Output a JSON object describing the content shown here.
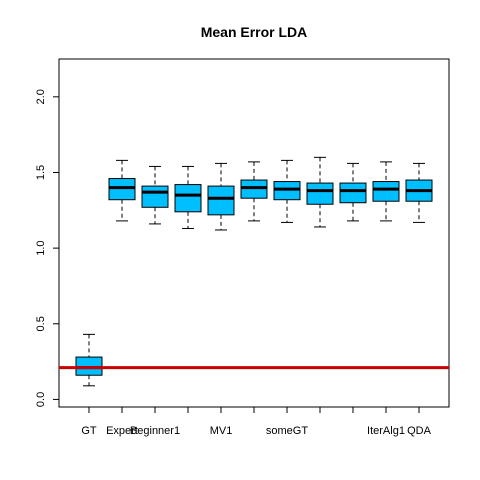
{
  "chart_data": {
    "type": "boxplot",
    "title": "Mean Error LDA",
    "xlabel": "",
    "ylabel": "",
    "ylim": [
      -0.05,
      2.25
    ],
    "y_ticks": [
      0.0,
      0.5,
      1.0,
      1.5,
      2.0
    ],
    "y_tick_labels": [
      "0.0",
      "0.5",
      "1.0",
      "1.5",
      "2.0"
    ],
    "categories": [
      "GT",
      "Expert",
      "Beginner1",
      "",
      "MV1",
      "",
      "someGT",
      "",
      "",
      "IterAlg1",
      "QDA"
    ],
    "x_tick_labels_shown": [
      "GT",
      "Expert",
      "Beginner1",
      "",
      "MV1",
      "",
      "someGT",
      "",
      "",
      "IterAlg1",
      "QDA"
    ],
    "box_color": "#00BFFF",
    "reference_line": {
      "y": 0.21,
      "color": "#CC0000"
    },
    "series": [
      {
        "min": 0.09,
        "q1": 0.16,
        "median": 0.21,
        "q3": 0.28,
        "max": 0.43
      },
      {
        "min": 1.18,
        "q1": 1.32,
        "median": 1.4,
        "q3": 1.46,
        "max": 1.58
      },
      {
        "min": 1.16,
        "q1": 1.27,
        "median": 1.37,
        "q3": 1.41,
        "max": 1.54
      },
      {
        "min": 1.13,
        "q1": 1.24,
        "median": 1.35,
        "q3": 1.42,
        "max": 1.54
      },
      {
        "min": 1.12,
        "q1": 1.22,
        "median": 1.33,
        "q3": 1.41,
        "max": 1.56
      },
      {
        "min": 1.18,
        "q1": 1.33,
        "median": 1.4,
        "q3": 1.45,
        "max": 1.57
      },
      {
        "min": 1.17,
        "q1": 1.32,
        "median": 1.39,
        "q3": 1.44,
        "max": 1.58
      },
      {
        "min": 1.14,
        "q1": 1.29,
        "median": 1.38,
        "q3": 1.43,
        "max": 1.6
      },
      {
        "min": 1.18,
        "q1": 1.3,
        "median": 1.38,
        "q3": 1.43,
        "max": 1.56
      },
      {
        "min": 1.18,
        "q1": 1.31,
        "median": 1.39,
        "q3": 1.44,
        "max": 1.57
      },
      {
        "min": 1.17,
        "q1": 1.31,
        "median": 1.38,
        "q3": 1.45,
        "max": 1.56
      }
    ]
  }
}
